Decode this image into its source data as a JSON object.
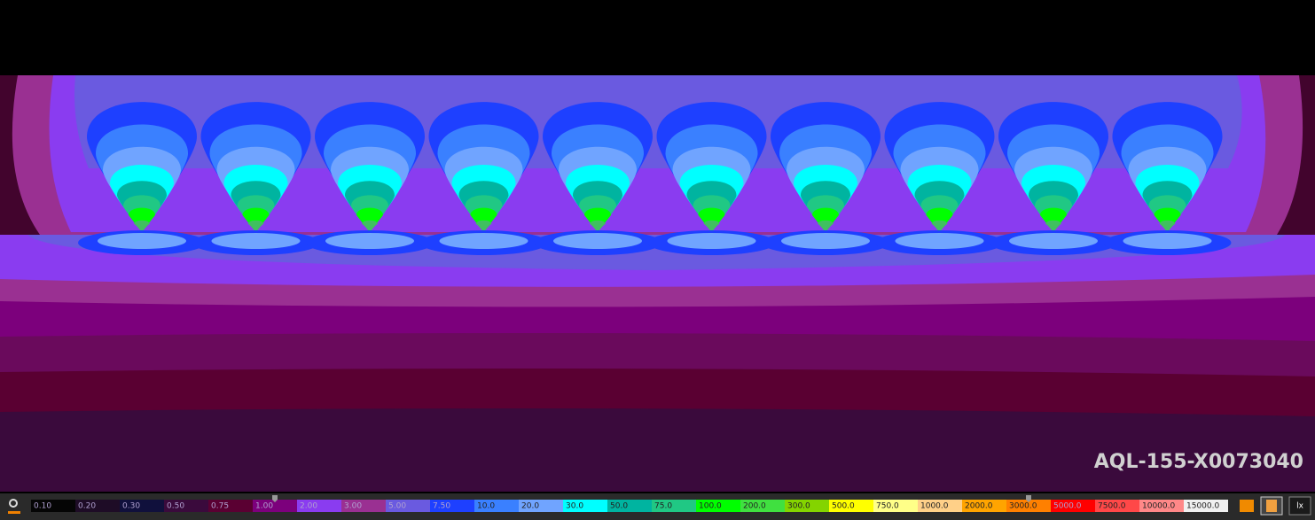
{
  "watermark": "AQL-155-X0073040",
  "unit_button": "lx",
  "legend": {
    "items": [
      {
        "label": "0.10",
        "color": "#050505"
      },
      {
        "label": "0.20",
        "color": "#1e0c26"
      },
      {
        "label": "0.30",
        "color": "#10103c"
      },
      {
        "label": "0.50",
        "color": "#3a0a3c"
      },
      {
        "label": "0.75",
        "color": "#5a0032"
      },
      {
        "label": "1.00",
        "color": "#7c007c"
      },
      {
        "label": "2.00",
        "color": "#8a3cf0"
      },
      {
        "label": "3.00",
        "color": "#9a3092"
      },
      {
        "label": "5.00",
        "color": "#6a5ae0"
      },
      {
        "label": "7.50",
        "color": "#1e40ff"
      },
      {
        "label": "10.0",
        "color": "#3a80ff"
      },
      {
        "label": "20.0",
        "color": "#70a4ff"
      },
      {
        "label": "30.0",
        "color": "#00ffff"
      },
      {
        "label": "50.0",
        "color": "#00b4a0"
      },
      {
        "label": "75.0",
        "color": "#20c884"
      },
      {
        "label": "100.0",
        "color": "#00ff00"
      },
      {
        "label": "200.0",
        "color": "#40e040"
      },
      {
        "label": "300.0",
        "color": "#84d400"
      },
      {
        "label": "500.0",
        "color": "#ffff00"
      },
      {
        "label": "750.0",
        "color": "#ffff88"
      },
      {
        "label": "1000.0",
        "color": "#ffd088"
      },
      {
        "label": "2000.0",
        "color": "#ffa400"
      },
      {
        "label": "3000.0",
        "color": "#ff8000"
      },
      {
        "label": "5000.0",
        "color": "#ff0000"
      },
      {
        "label": "7500.0",
        "color": "#ff4848"
      },
      {
        "label": "10000.0",
        "color": "#ff8888"
      },
      {
        "label": "15000.0",
        "color": "#f0f0f0"
      }
    ]
  }
}
